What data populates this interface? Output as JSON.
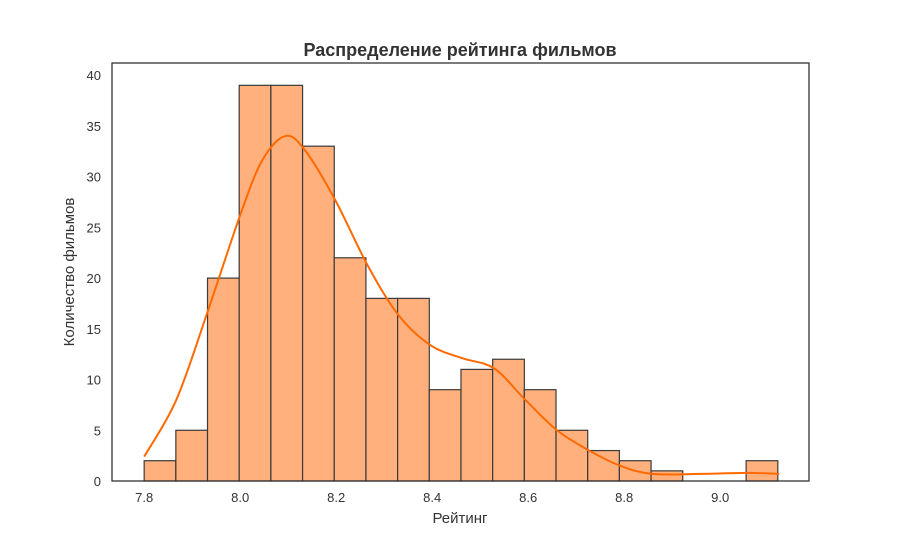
{
  "chart_data": {
    "type": "bar",
    "title": "Распределение рейтинга фильмов",
    "xlabel": "Рейтинг",
    "ylabel": "Количество фильмов",
    "xlim": [
      7.733,
      9.185
    ],
    "ylim": [
      0,
      41.2
    ],
    "grid": false,
    "bin_start": 7.8,
    "bin_width": 0.066,
    "values": [
      2,
      5,
      20,
      39,
      39,
      33,
      22,
      18,
      18,
      9,
      11,
      12,
      9,
      5,
      3,
      2,
      1,
      0,
      0,
      2
    ],
    "xticks": [
      7.8,
      8.0,
      8.2,
      8.4,
      8.6,
      8.8,
      9.0
    ],
    "xtick_labels": [
      "7.8",
      "8.0",
      "8.2",
      "8.4",
      "8.6",
      "8.8",
      "9.0"
    ],
    "yticks": [
      0,
      5,
      10,
      15,
      20,
      25,
      30,
      35,
      40
    ],
    "ytick_labels": [
      "0",
      "5",
      "10",
      "15",
      "20",
      "25",
      "30",
      "35",
      "40"
    ],
    "kde": {
      "x": [
        7.8,
        7.867,
        7.933,
        8.0,
        8.046,
        8.094,
        8.135,
        8.198,
        8.265,
        8.329,
        8.396,
        8.463,
        8.529,
        8.594,
        8.66,
        8.727,
        8.792,
        8.858,
        8.958,
        9.056,
        9.123
      ],
      "y": [
        2.4,
        8,
        16.8,
        26.2,
        31.6,
        34,
        32.6,
        27.7,
        21.3,
        16.4,
        13.4,
        12.1,
        11.1,
        8,
        5,
        3,
        1.5,
        0.7,
        0.7,
        0.8,
        0.7
      ]
    },
    "colors": {
      "bar": "#ffb07c",
      "edge": "#3a3a3a",
      "kde": "#ff6a00",
      "axis": "#333333"
    }
  }
}
